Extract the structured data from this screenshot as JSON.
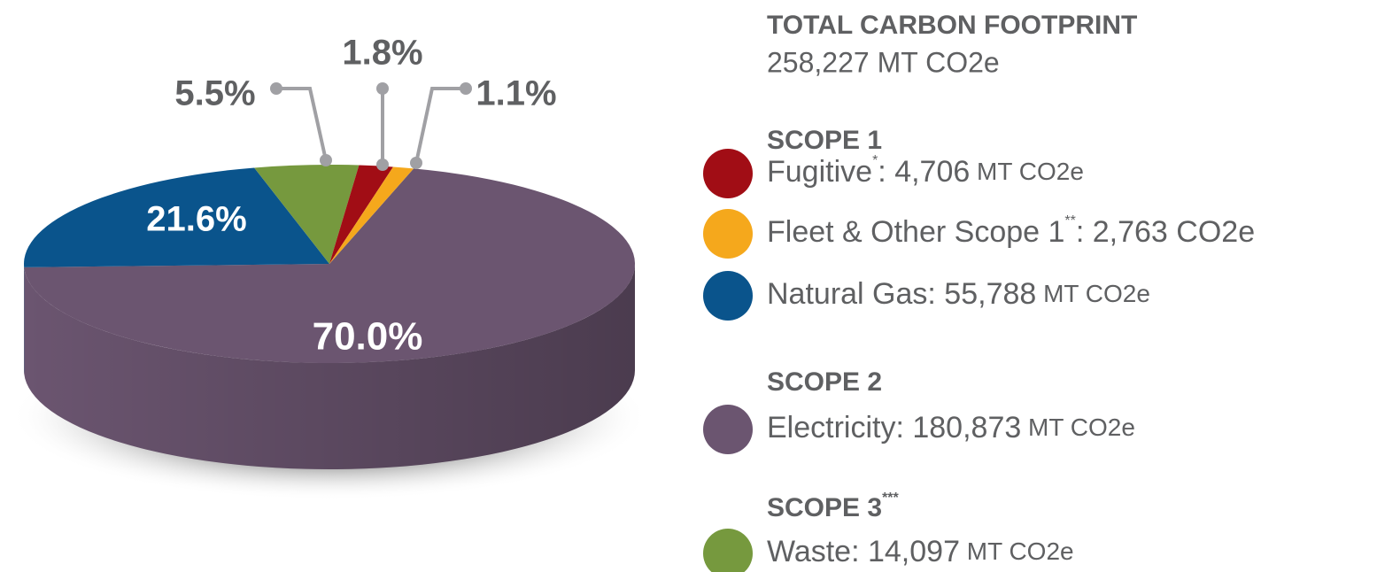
{
  "chart_data": {
    "type": "pie",
    "values": [
      70.0,
      21.6,
      5.5,
      1.8,
      1.1
    ],
    "value_labels": [
      "70.0%",
      "21.6%",
      "5.5%",
      "1.8%",
      "1.1%"
    ],
    "colors": [
      "#6b5570",
      "#0a548c",
      "#76993e",
      "#a10d15",
      "#f5a81c"
    ]
  },
  "summary": {
    "title": "TOTAL CARBON FOOTPRINT",
    "total": "258,227 MT CO2e"
  },
  "legend": [
    {
      "heading": "SCOPE 1",
      "items": [
        {
          "name": "Fugitive",
          "note": "*",
          "amount": ": 4,706",
          "unit": " MT CO2e",
          "color": "#a10d15"
        },
        {
          "name": "Fleet & Other Scope 1",
          "note": "**",
          "amount": ": 2,763 CO2e",
          "color": "#f5a81c"
        },
        {
          "name": "Natural Gas",
          "amount": ": 55,788",
          "unit": " MT CO2e",
          "color": "#0a548c"
        }
      ]
    },
    {
      "heading": "SCOPE 2",
      "items": [
        {
          "name": "Electricity",
          "amount": ": 180,873",
          "unit": " MT CO2e",
          "color": "#6b5570"
        }
      ]
    },
    {
      "heading": "SCOPE 3",
      "heading_note": "***",
      "items": [
        {
          "name": "Waste",
          "amount": ": 14,097",
          "unit": " MT CO2e",
          "color": "#76993e"
        }
      ]
    }
  ]
}
